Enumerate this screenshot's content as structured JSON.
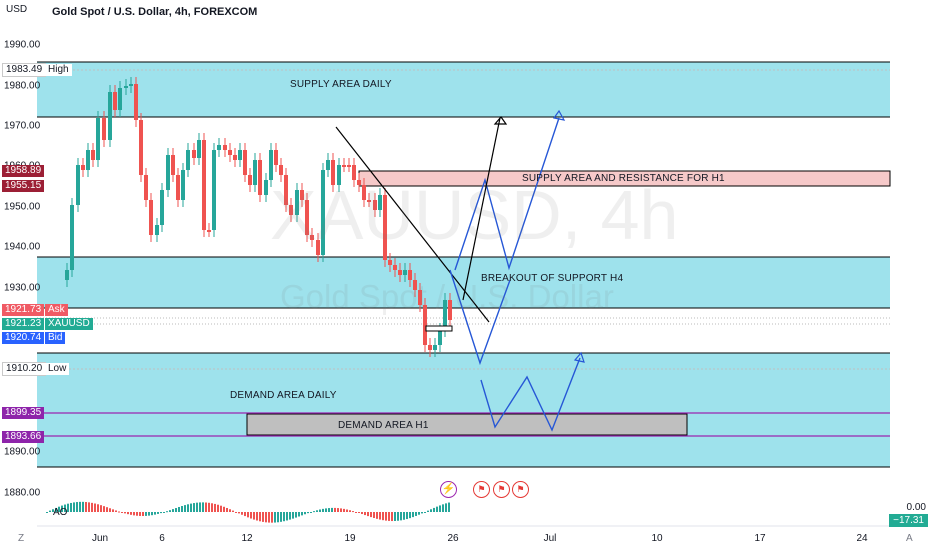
{
  "header": {
    "currency": "USD",
    "title": "Gold Spot / U.S. Dollar, 4h, FOREXCOM"
  },
  "watermark": {
    "symbol": "XAUUSD, 4h",
    "name": "Gold Spot / U.S. Dollar"
  },
  "price_axis": {
    "ticks": [
      "1990.00",
      "1980.00",
      "1970.00",
      "1960.00",
      "1950.00",
      "1940.00",
      "1930.00",
      "1910.00",
      "1890.00",
      "1880.00"
    ]
  },
  "price_tags": {
    "high_value": "1983.49",
    "high_label": "High",
    "tag_1958": "1958.89",
    "tag_1955": "1955.15",
    "ask_value": "1921.73",
    "ask_label": "Ask",
    "last_value": "1921.23",
    "last_label": "XAUUSD",
    "bid_value": "1920.74",
    "bid_label": "Bid",
    "low_value": "1910.20",
    "low_label": "Low",
    "tag_1899": "1899.35",
    "tag_1893": "1893.66"
  },
  "annotations": {
    "supply_daily": "SUPPLY AREA DAILY",
    "supply_h1": "SUPPLY AREA AND RESISTANCE FOR H1",
    "breakout_h4": "BREAKOUT OF SUPPORT H4",
    "demand_daily": "DEMAND AREA DAILY",
    "demand_h1": "DEMAND AREA H1"
  },
  "time_axis": {
    "labels": [
      "Jun",
      "6",
      "12",
      "19",
      "26",
      "Jul",
      "10",
      "17",
      "24"
    ]
  },
  "indicator": {
    "name": "AO",
    "right_top": "0.00",
    "right_value": "−17.31"
  },
  "footer": {
    "left_icon": "Z",
    "right_icon": "A"
  },
  "colors": {
    "zone": "#9ee2ec",
    "supply_h1": "#f6c9c9",
    "demand_h1": "#bfbfbf",
    "bull": "#26a69a",
    "bear": "#ef5350",
    "path_blue": "#2657d6",
    "purple": "#9c27b0",
    "ask": "#f05a64",
    "last": "#22ab94",
    "bid": "#2962ff"
  }
}
